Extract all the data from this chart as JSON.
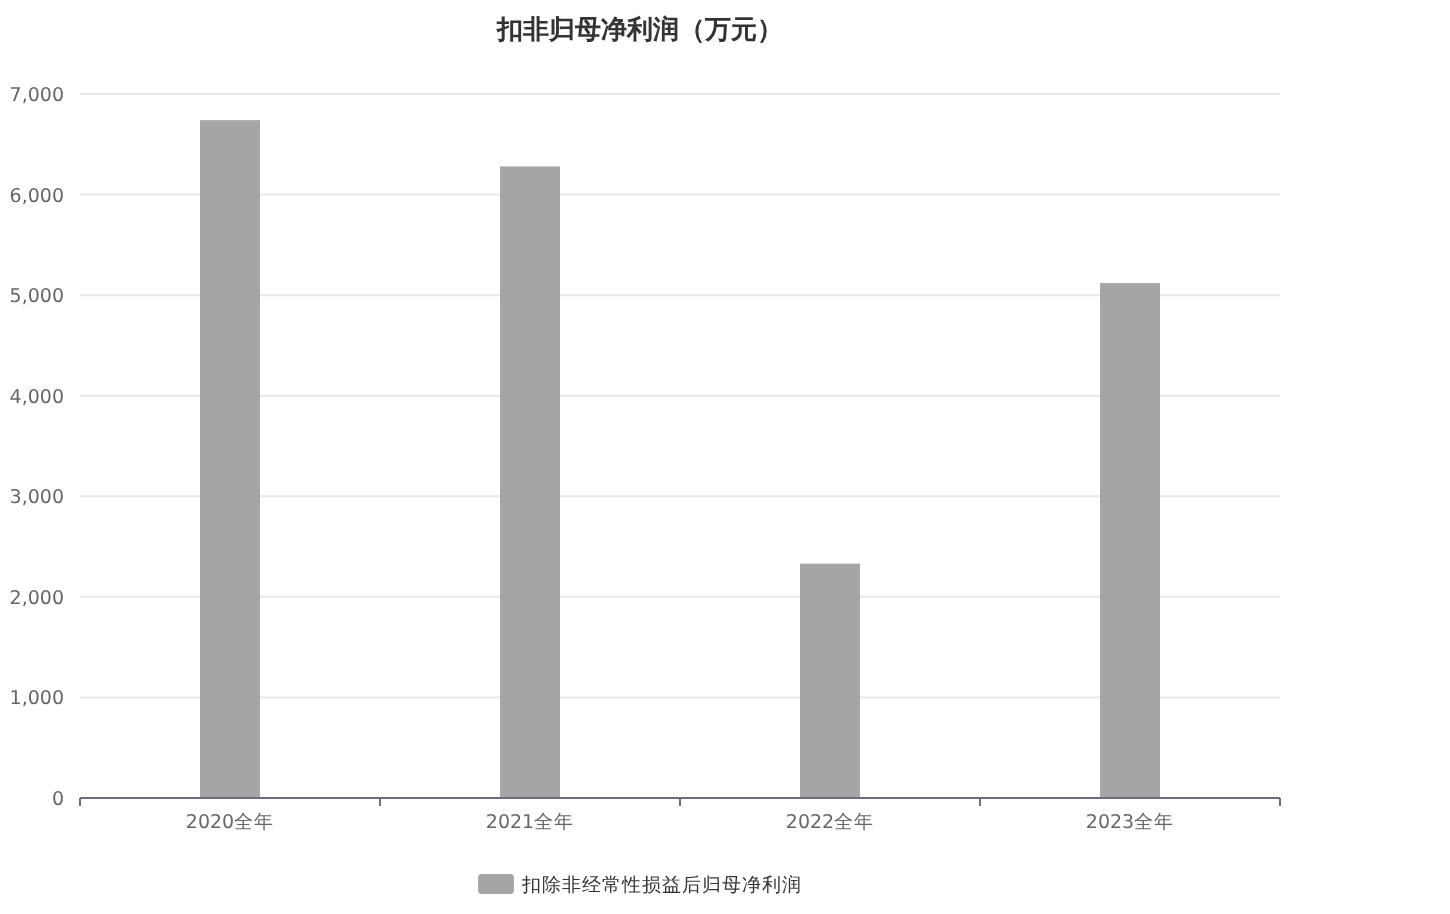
{
  "chart_data": {
    "type": "bar",
    "title": "扣非归母净利润（万元）",
    "categories": [
      "2020全年",
      "2021全年",
      "2022全年",
      "2023全年"
    ],
    "series": [
      {
        "name": "扣除非经常性损益后归母净利润",
        "color": "#a5a5a5",
        "values": [
          6740,
          6280,
          2330,
          5120
        ]
      }
    ],
    "ylim": [
      0,
      7000
    ],
    "yticks": [
      0,
      {
        "value": 1000,
        "label": "1,000"
      },
      {
        "value": 2000,
        "label": "2,000"
      },
      {
        "value": 3000,
        "label": "3,000"
      },
      {
        "value": 4000,
        "label": "4,000"
      },
      {
        "value": 5000,
        "label": "5,000"
      },
      {
        "value": 6000,
        "label": "6,000"
      },
      {
        "value": 7000,
        "label": "7,000"
      }
    ],
    "grid": "y",
    "legend": "bottom"
  }
}
